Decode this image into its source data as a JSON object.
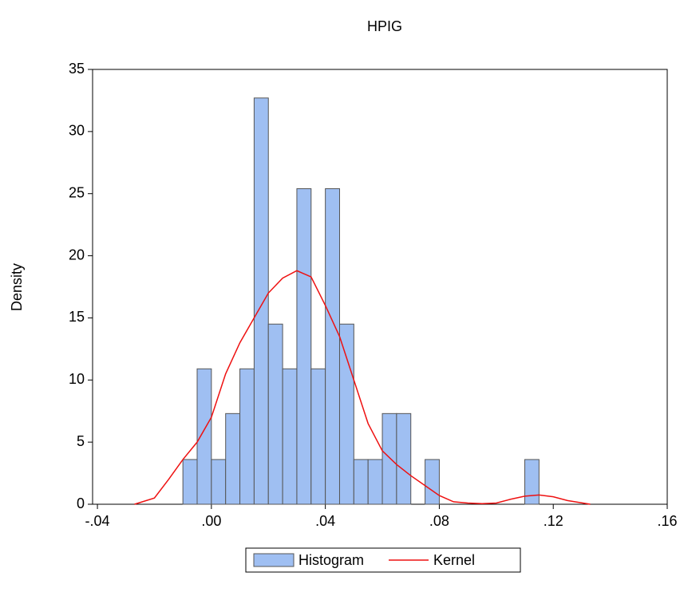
{
  "chart_data": {
    "type": "histogram",
    "title": "HPIG",
    "y_label": "Density",
    "bins": [
      -0.01,
      -0.005,
      0,
      0.005,
      0.01,
      0.015,
      0.02,
      0.025,
      0.03,
      0.035,
      0.04,
      0.045,
      0.05,
      0.055,
      0.06,
      0.065,
      0.07,
      0.075,
      0.08,
      0.085,
      0.09,
      0.095,
      0.1,
      0.105,
      0.11,
      0.115
    ],
    "series": [
      {
        "name": "Histogram",
        "color": "#9fbff2",
        "values": [
          3.6,
          10.9,
          3.6,
          7.3,
          10.9,
          32.7,
          14.5,
          10.9,
          25.4,
          10.9,
          25.4,
          14.5,
          3.6,
          3.6,
          7.3,
          7.3,
          0,
          3.6,
          0,
          0,
          0,
          0,
          0,
          0,
          3.6
        ]
      },
      {
        "name": "Kernel",
        "color": "#ee1111",
        "x": [
          -0.027,
          -0.02,
          -0.015,
          -0.01,
          -0.005,
          0,
          0.005,
          0.01,
          0.015,
          0.02,
          0.025,
          0.03,
          0.035,
          0.04,
          0.045,
          0.05,
          0.055,
          0.06,
          0.065,
          0.07,
          0.075,
          0.08,
          0.085,
          0.09,
          0.095,
          0.1,
          0.105,
          0.11,
          0.115,
          0.12,
          0.125,
          0.133
        ],
        "values": [
          0,
          0.5,
          2,
          3.6,
          5,
          7,
          10.5,
          13,
          15,
          17,
          18.2,
          18.8,
          18.3,
          16,
          13.5,
          10,
          6.5,
          4.3,
          3.2,
          2.3,
          1.5,
          0.7,
          0.2,
          0.1,
          0.05,
          0.1,
          0.4,
          0.65,
          0.75,
          0.6,
          0.3,
          0
        ]
      }
    ],
    "xlim": [
      -0.0417,
      0.16
    ],
    "ylim": [
      0,
      35
    ],
    "xticks": [
      {
        "value": -0.04,
        "label": "-.04"
      },
      {
        "value": 0,
        "label": ".00"
      },
      {
        "value": 0.04,
        "label": ".04"
      },
      {
        "value": 0.08,
        "label": ".08"
      },
      {
        "value": 0.12,
        "label": ".12"
      },
      {
        "value": 0.16,
        "label": ".16"
      }
    ],
    "yticks": [
      0,
      5,
      10,
      15,
      20,
      25,
      30,
      35
    ]
  }
}
